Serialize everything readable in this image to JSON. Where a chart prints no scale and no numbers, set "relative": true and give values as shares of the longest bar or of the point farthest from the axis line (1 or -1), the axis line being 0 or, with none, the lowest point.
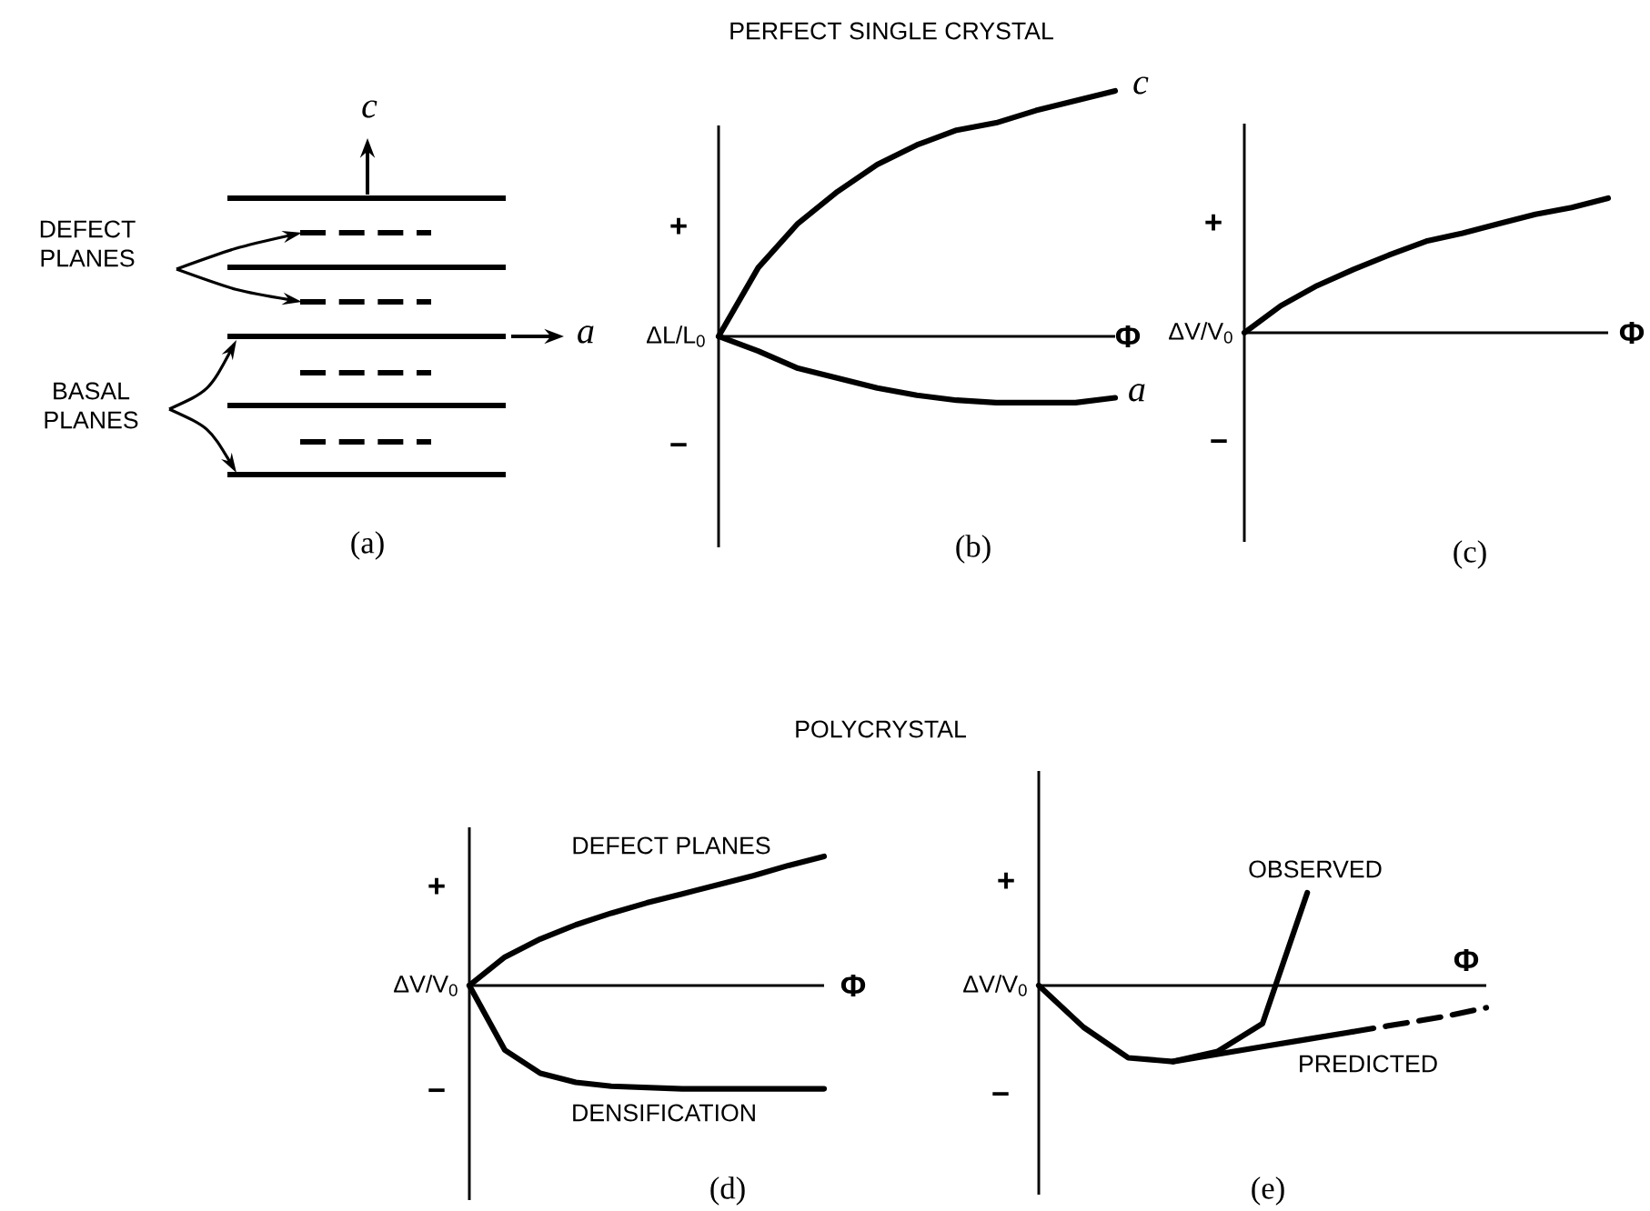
{
  "chart_data": [
    {
      "type": "other",
      "annotations": [
        "DEFECT PLANES",
        "BASAL PLANES",
        "c",
        "a",
        "(a)"
      ]
    },
    {
      "type": "line",
      "title": "PERFECT SINGLE CRYSTAL",
      "xlabel": "Φ",
      "ylabel": "ΔL/L$_{0}$",
      "relative": true,
      "categories": [
        null,
        null,
        null,
        null,
        null,
        null,
        null,
        null,
        null,
        null,
        null
      ],
      "series": [
        {
          "name": "c",
          "color": "#000000",
          "values": [
            0,
            0.28,
            0.46,
            0.59,
            0.7,
            0.78,
            0.84,
            0.87,
            0.92,
            0.96,
            1
          ]
        },
        {
          "name": "a",
          "color": "#000000",
          "values": [
            0,
            -0.06,
            -0.13,
            -0.17,
            -0.21,
            -0.24,
            -0.26,
            -0.27,
            -0.27,
            -0.27,
            -0.25
          ]
        }
      ],
      "annotations": [
        "+",
        "−",
        "(b)"
      ]
    },
    {
      "type": "line",
      "xlabel": "Φ",
      "ylabel": "ΔV/V$_{0}$",
      "relative": true,
      "categories": [
        null,
        null,
        null,
        null,
        null,
        null,
        null,
        null,
        null,
        null,
        null
      ],
      "series": [
        {
          "color": "#000000",
          "values": [
            0,
            0.2,
            0.35,
            0.47,
            0.58,
            0.68,
            0.74,
            0.81,
            0.88,
            0.93,
            1
          ]
        }
      ],
      "annotations": [
        "+",
        "−",
        "(c)"
      ]
    },
    {
      "type": "line",
      "title": "POLYCRYSTAL",
      "xlabel": "Φ",
      "ylabel": "ΔV/V$_{0}$",
      "relative": true,
      "categories": [
        null,
        null,
        null,
        null,
        null,
        null,
        null,
        null,
        null,
        null,
        null
      ],
      "series": [
        {
          "name": "DEFECT PLANES",
          "color": "#000000",
          "values": [
            0,
            0.22,
            0.36,
            0.47,
            0.56,
            0.64,
            0.71,
            0.78,
            0.85,
            0.93,
            1
          ]
        },
        {
          "name": "DENSIFICATION",
          "color": "#000000",
          "values": [
            0,
            -0.5,
            -0.68,
            -0.75,
            -0.78,
            -0.79,
            -0.8,
            -0.8,
            -0.8,
            -0.8,
            -0.8
          ]
        }
      ],
      "annotations": [
        "+",
        "−",
        "(d)"
      ]
    },
    {
      "type": "line",
      "xlabel": "Φ",
      "ylabel": "ΔV/V$_{0}$",
      "relative": true,
      "categories": [
        null,
        null,
        null,
        null,
        null,
        null,
        null,
        null,
        null,
        null,
        null
      ],
      "series": [
        {
          "name": "OBSERVED",
          "color": "#000000",
          "values": [
            0,
            -0.45,
            -0.78,
            -0.82,
            -0.71,
            -0.41,
            1,
            null,
            null,
            null,
            null
          ]
        },
        {
          "name": "PREDICTED",
          "color": "#000000",
          "values": [
            null,
            null,
            null,
            -0.82,
            -0.74,
            -0.66,
            -0.58,
            -0.5,
            null,
            null,
            null
          ]
        },
        {
          "color": "#000000",
          "line_style": "dashed",
          "values": [
            null,
            null,
            null,
            null,
            null,
            null,
            null,
            -0.5,
            -0.42,
            -0.34,
            -0.24
          ]
        }
      ],
      "annotations": [
        "+",
        "−",
        "(e)"
      ]
    }
  ]
}
